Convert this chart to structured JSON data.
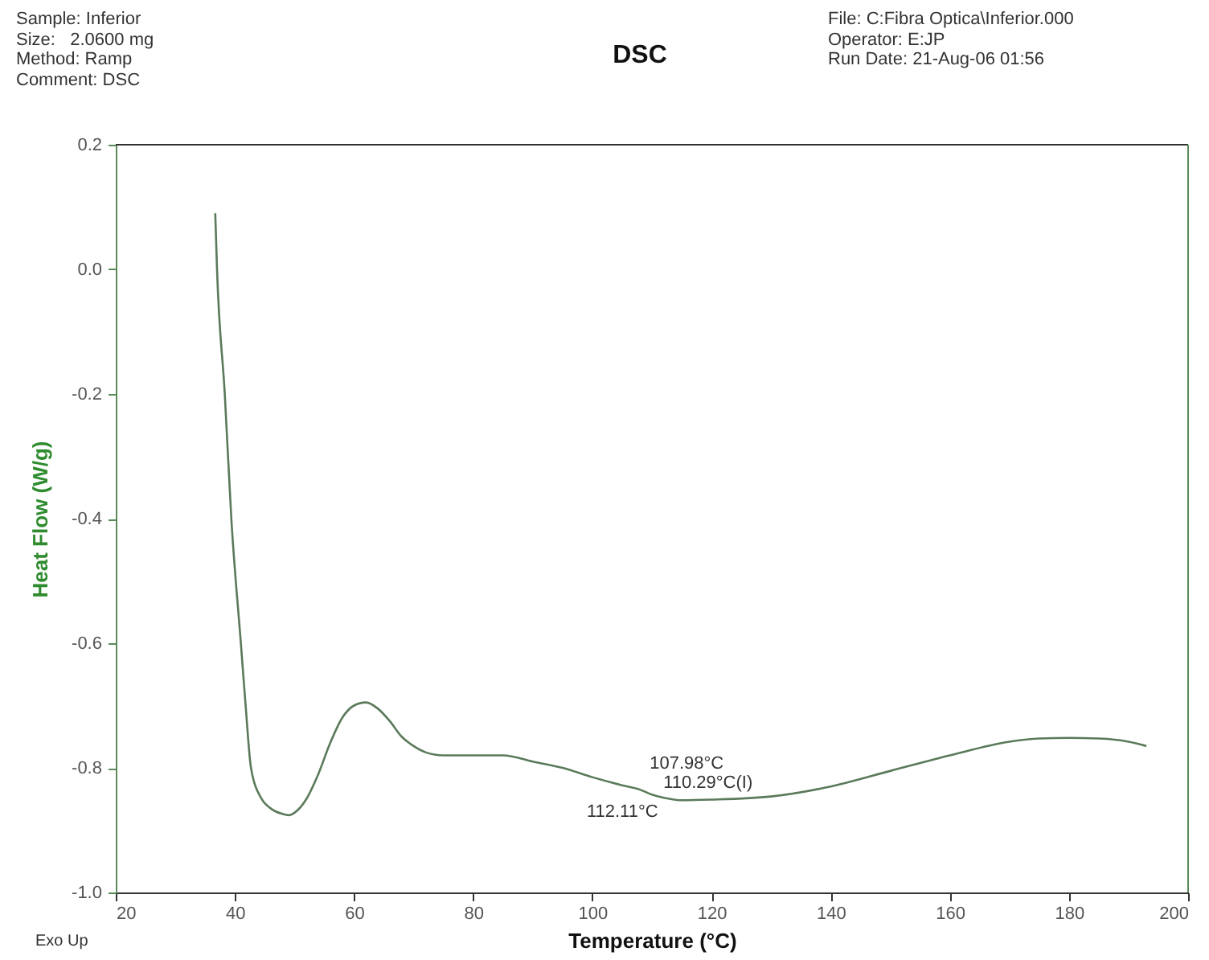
{
  "chart_data": {
    "type": "line",
    "title": "DSC",
    "xlabel": "Temperature (°C)",
    "ylabel": "Heat Flow (W/g)",
    "x": [
      36.7,
      37.0,
      38.3,
      39.4,
      41.0,
      41.8,
      42.7,
      44.5,
      46,
      48,
      49,
      50,
      52,
      54,
      56,
      58,
      60,
      62,
      64,
      66,
      68,
      70,
      72,
      75,
      80,
      85,
      90,
      95,
      100,
      105,
      108,
      110,
      112,
      115,
      120,
      130,
      140,
      150,
      160,
      170,
      175,
      180,
      185,
      190,
      193
    ],
    "series": [
      {
        "color": "#5a7a5a",
        "values": [
          0.09,
          0.0,
          -0.2,
          -0.4,
          -0.6,
          -0.7,
          -0.8,
          -0.85,
          -0.865,
          -0.874,
          -0.876,
          -0.872,
          -0.85,
          -0.81,
          -0.76,
          -0.72,
          -0.7,
          -0.695,
          -0.705,
          -0.725,
          -0.75,
          -0.765,
          -0.775,
          -0.78,
          -0.78,
          -0.78,
          -0.79,
          -0.8,
          -0.815,
          -0.828,
          -0.835,
          -0.843,
          -0.848,
          -0.852,
          -0.851,
          -0.846,
          -0.83,
          -0.805,
          -0.78,
          -0.758,
          -0.753,
          -0.752,
          -0.753,
          -0.758,
          -0.765
        ]
      }
    ],
    "xlim": [
      20,
      200
    ],
    "xticks": [
      20,
      40,
      60,
      80,
      100,
      120,
      140,
      160,
      180,
      200
    ],
    "ylim": [
      -1.0,
      0.2
    ],
    "yticks": [
      {
        "value": -1.0,
        "label": "-1.0"
      },
      {
        "value": -0.8,
        "label": "-0.8"
      },
      {
        "value": -0.6,
        "label": "-0.6"
      },
      {
        "value": -0.4,
        "label": "-0.4"
      },
      {
        "value": -0.2,
        "label": "-0.2"
      },
      {
        "value": 0.0,
        "label": "0.0"
      },
      {
        "value": 0.2,
        "label": "0.2"
      }
    ],
    "grid": false,
    "marker": "none",
    "line_style": "solid",
    "annotations": [
      "Sample: Inferior",
      "Size:   2.0600 mg",
      "Method: Ramp",
      "Comment: DSC",
      "File: C:Fibra Optica\\Inferior.000",
      "Operator: E:JP",
      "Run Date: 21-Aug-06 01:56",
      "Exo Up",
      {
        "text": "107.98°C",
        "x": 108,
        "y": -0.835
      },
      {
        "text": "110.29°C(I)",
        "x": 110.29,
        "y": -0.843
      },
      {
        "text": "112.11°C",
        "x": 112.11,
        "y": -0.848
      }
    ]
  }
}
